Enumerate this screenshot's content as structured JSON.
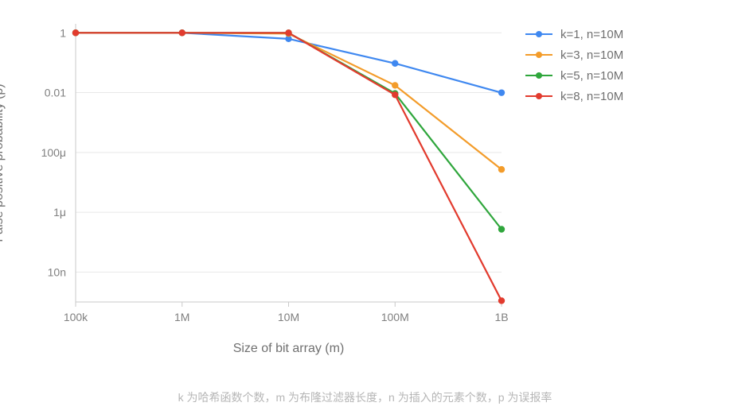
{
  "chart": {
    "type": "line",
    "background_color": "#ffffff",
    "grid_color": "#e8e8e8",
    "axis_color": "#c9c9c9",
    "tick_label_color": "#808080",
    "label_color": "#707070",
    "xlabel": "Size of bit array (m)",
    "ylabel": "False positive probability (p)",
    "x_ticks": [
      "100k",
      "1M",
      "10M",
      "100M",
      "1B"
    ],
    "x_tick_values": [
      100000,
      1000000,
      10000000,
      100000000,
      1000000000
    ],
    "y_ticks": [
      "1",
      "0.01",
      "100μ",
      "1μ",
      "10n"
    ],
    "y_tick_values": [
      1,
      0.01,
      0.0001,
      1e-06,
      1e-08
    ],
    "ylim_exp": [
      -9.0,
      0.3
    ],
    "xlim_exp": [
      5,
      9
    ],
    "line_width": 2.2,
    "marker_size": 4.2,
    "legend_position": "right",
    "label_fontsize": 16,
    "tick_fontsize": 14,
    "series": [
      {
        "name": "k=1, n=10M",
        "color": "#3f88f0",
        "x": [
          100000,
          1000000,
          10000000,
          100000000,
          1000000000
        ],
        "y": [
          1,
          1,
          0.63,
          0.095,
          0.00995
        ]
      },
      {
        "name": "k=3, n=10M",
        "color": "#f39c2a",
        "x": [
          100000,
          1000000,
          10000000,
          100000000,
          1000000000
        ],
        "y": [
          1,
          1,
          0.94,
          0.0175,
          2.7e-05
        ]
      },
      {
        "name": "k=5, n=10M",
        "color": "#2fa63c",
        "x": [
          100000,
          1000000,
          10000000,
          100000000,
          1000000000
        ],
        "y": [
          1,
          1,
          1,
          0.0094,
          2.7e-07
        ]
      },
      {
        "name": "k=8, n=10M",
        "color": "#e23b2e",
        "x": [
          100000,
          1000000,
          10000000,
          100000000,
          1000000000
        ],
        "y": [
          1,
          1,
          1,
          0.00846,
          1.1e-09
        ]
      }
    ]
  },
  "caption": "k 为哈希函数个数，m 为布隆过滤器长度，n 为插入的元素个数，p 为误报率"
}
